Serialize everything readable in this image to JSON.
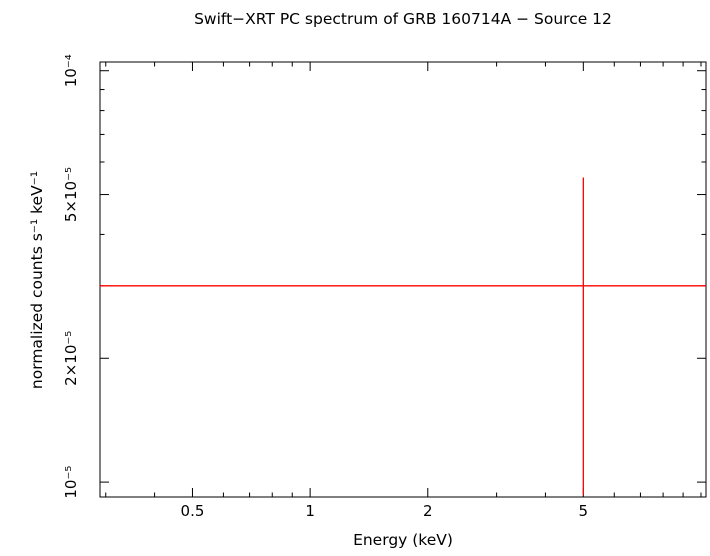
{
  "chart_data": {
    "type": "scatter",
    "title": "Swift−XRT PC spectrum of GRB 160714A − Source 12",
    "xlabel": "Energy (keV)",
    "ylabel": "normalized counts s⁻¹ keV⁻¹",
    "x_scale": "log",
    "y_scale": "log",
    "xlim": [
      0.29,
      10.3
    ],
    "ylim": [
      9.2e-06,
      0.000105
    ],
    "x_major_ticks": [
      {
        "value": 0.5,
        "label": "0.5"
      },
      {
        "value": 1,
        "label": "1"
      },
      {
        "value": 2,
        "label": "2"
      },
      {
        "value": 5,
        "label": "5"
      }
    ],
    "x_minor_ticks": [
      0.3,
      0.4,
      0.6,
      0.7,
      0.8,
      0.9,
      3,
      4,
      6,
      7,
      8,
      9,
      10
    ],
    "y_major_ticks": [
      {
        "value": 1e-05,
        "label": "10⁻⁵"
      },
      {
        "value": 2e-05,
        "label": "2×10⁻⁵"
      },
      {
        "value": 5e-05,
        "label": "5×10⁻⁵"
      },
      {
        "value": 0.0001,
        "label": "10⁻⁴"
      }
    ],
    "y_minor_ticks": [
      3e-05,
      4e-05,
      6e-05,
      7e-05,
      8e-05,
      9e-05
    ],
    "grid": false,
    "legend": false,
    "frame_color": "#000000",
    "background": "#ffffff",
    "series": [
      {
        "name": "spectrum-bin",
        "color": "#ff0000",
        "marker": "error-bars",
        "points": [
          {
            "x": 5.0,
            "x_low": 0.29,
            "x_high": 10.3,
            "y": 3e-05,
            "y_low": 9.3e-06,
            "y_high": 5.5e-05
          }
        ]
      }
    ]
  }
}
